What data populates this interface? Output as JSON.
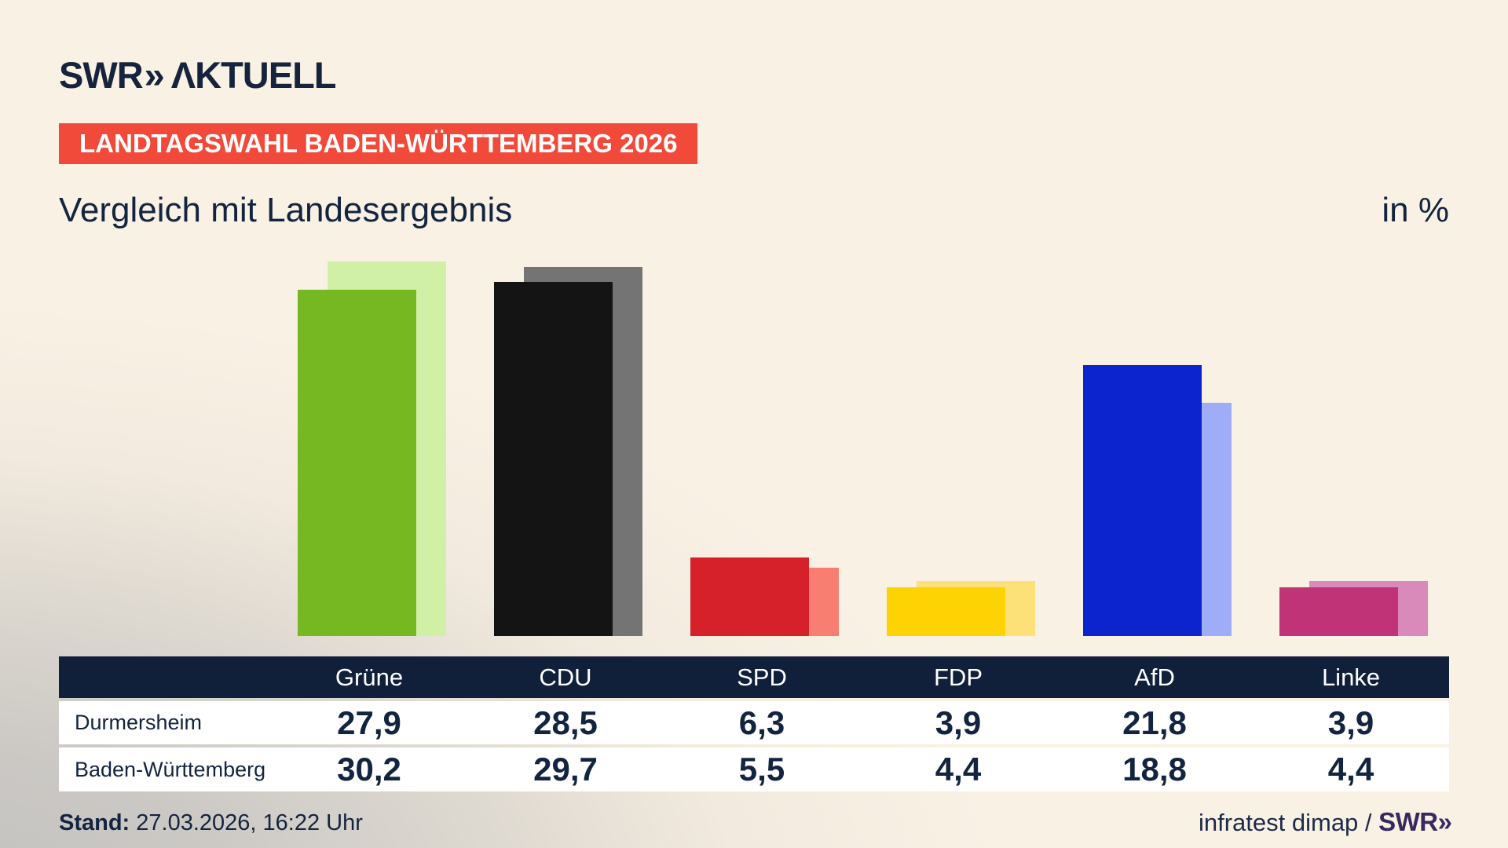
{
  "header": {
    "logo_brand": "SWR",
    "logo_chevrons": "»",
    "logo_suffix": "ΛKTUELL",
    "badge": "LANDTAGSWAHL BADEN-WÜRTTEMBERG 2026",
    "title": "Vergleich mit Landesergebnis",
    "unit_label": "in %"
  },
  "chart_data": {
    "type": "bar",
    "categories": [
      "Grüne",
      "CDU",
      "SPD",
      "FDP",
      "AfD",
      "Linke"
    ],
    "series": [
      {
        "name": "Durmersheim",
        "role": "front",
        "values": [
          27.9,
          28.5,
          6.3,
          3.9,
          21.8,
          3.9
        ]
      },
      {
        "name": "Baden-Württemberg",
        "role": "back",
        "values": [
          30.2,
          29.7,
          5.5,
          4.4,
          18.8,
          4.4
        ]
      }
    ],
    "colors_front": [
      "#76b822",
      "#141414",
      "#d6202a",
      "#fed304",
      "#0b24cd",
      "#c03477"
    ],
    "colors_back": [
      "#d0f0a6",
      "#757474",
      "#f97e72",
      "#fce178",
      "#9fadf8",
      "#d98aba"
    ],
    "title": "Vergleich mit Landesergebnis",
    "ylabel": "in %",
    "ylim": [
      0,
      31
    ],
    "grid": false,
    "legend_position": "table-rows"
  },
  "table": {
    "columns": [
      "Grüne",
      "CDU",
      "SPD",
      "FDP",
      "AfD",
      "Linke"
    ],
    "rows": [
      {
        "label": "Durmersheim",
        "values": [
          "27,9",
          "28,5",
          "6,3",
          "3,9",
          "21,8",
          "3,9"
        ]
      },
      {
        "label": "Baden-Württemberg",
        "values": [
          "30,2",
          "29,7",
          "5,5",
          "4,4",
          "18,8",
          "4,4"
        ]
      }
    ]
  },
  "footer": {
    "stand_label": "Stand:",
    "stand_value": " 27.03.2026, 16:22 Uhr",
    "source": "infratest dimap / ",
    "source_brand": "SWR",
    "source_brand_chevrons": "»"
  }
}
